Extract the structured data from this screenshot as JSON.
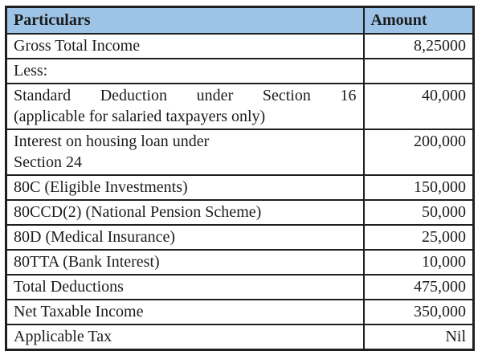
{
  "colors": {
    "header_bg": "#9DC3E6",
    "border": "#1f1f1f",
    "text": "#1c1c1c",
    "page_bg": "#ffffff"
  },
  "table": {
    "columns": {
      "particulars": "Particulars",
      "amount": "Amount"
    },
    "rows": [
      {
        "label": "Gross Total Income",
        "amount": "8,25000"
      },
      {
        "label": "Less:",
        "amount": ""
      },
      {
        "label": "Standard Deduction under Section 16",
        "label2": "(applicable for salaried taxpayers only)",
        "amount": "40,000"
      },
      {
        "label": "Interest on housing loan under",
        "label2": "Section 24",
        "amount": "200,000"
      },
      {
        "label": "80C (Eligible Investments)",
        "amount": "150,000"
      },
      {
        "label": "80CCD(2) (National Pension Scheme)",
        "amount": "50,000"
      },
      {
        "label": "80D (Medical Insurance)",
        "amount": "25,000"
      },
      {
        "label": "80TTA (Bank Interest)",
        "amount": "10,000"
      },
      {
        "label": "Total Deductions",
        "amount": "475,000"
      },
      {
        "label": "Net Taxable Income",
        "amount": "350,000"
      },
      {
        "label": "Applicable Tax",
        "amount": "Nil"
      }
    ]
  }
}
